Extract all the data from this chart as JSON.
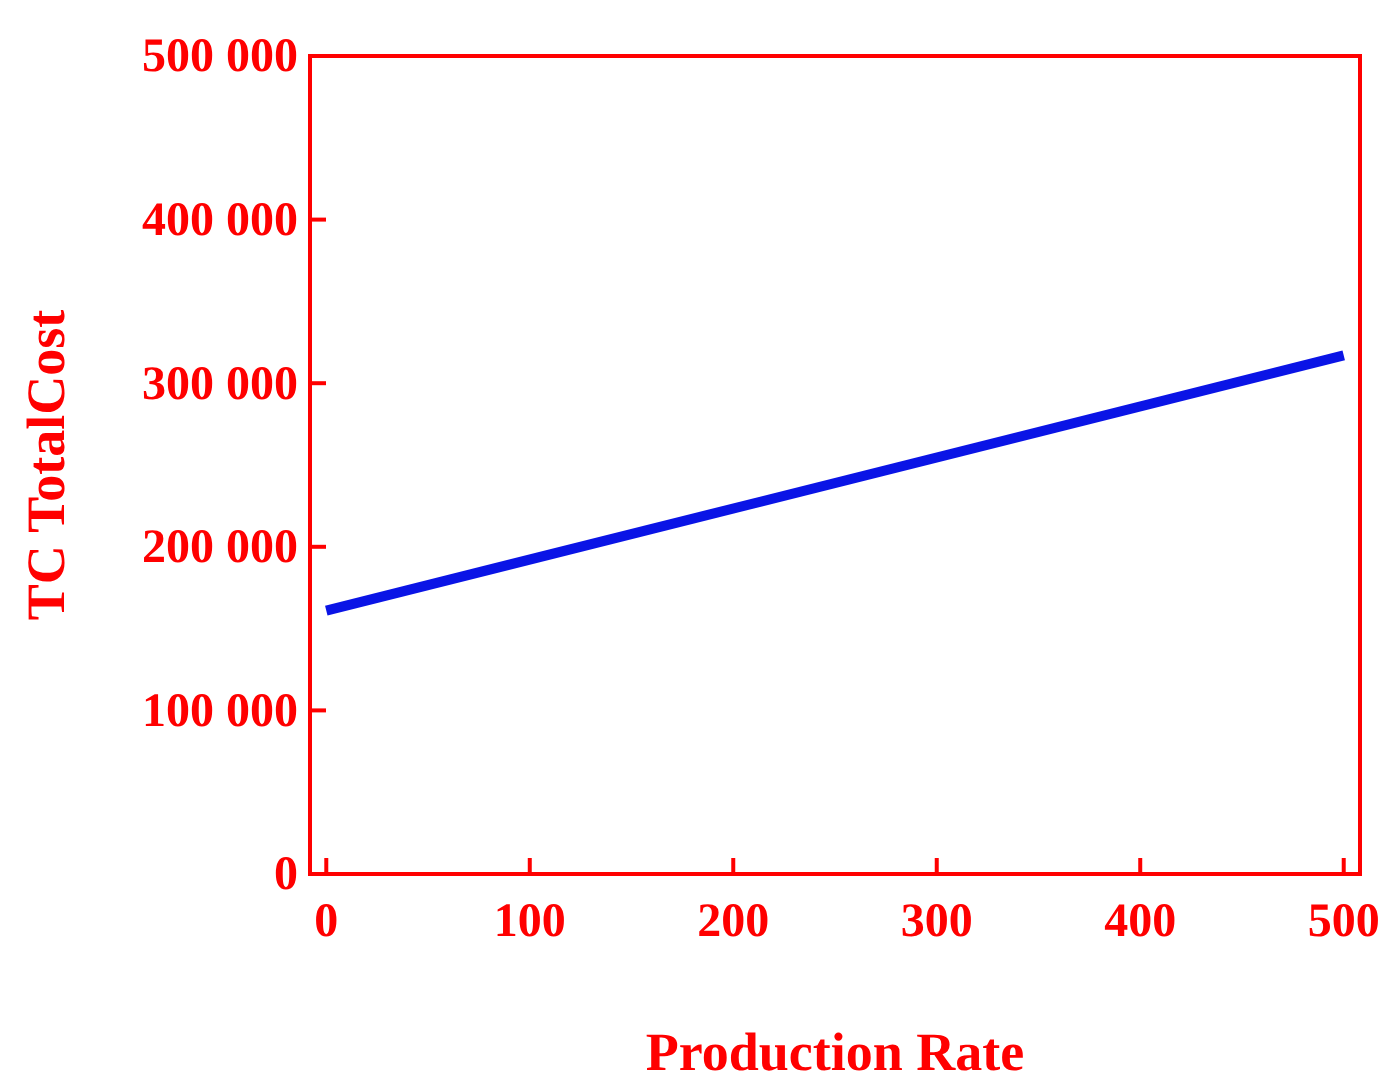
{
  "chart_data": {
    "type": "line",
    "xlabel": "Production Rate",
    "ylabel": "TC TotalCost",
    "x": [
      0,
      500
    ],
    "series": [
      {
        "color": "#0a14e6",
        "values": [
          161000,
          317000
        ]
      }
    ],
    "xlim": [
      -8,
      508
    ],
    "xticks": [
      0,
      100,
      200,
      300,
      400,
      500
    ],
    "ylim": [
      0,
      500000
    ],
    "yticks": [
      {
        "value": 0,
        "label": "0"
      },
      {
        "value": 100000,
        "label": "100 000"
      },
      {
        "value": 200000,
        "label": "200 000"
      },
      {
        "value": 300000,
        "label": "300 000"
      },
      {
        "value": 400000,
        "label": "400 000"
      },
      {
        "value": 500000,
        "label": "500 000"
      }
    ],
    "grid": false,
    "marker": "none",
    "line_style": "solid"
  }
}
